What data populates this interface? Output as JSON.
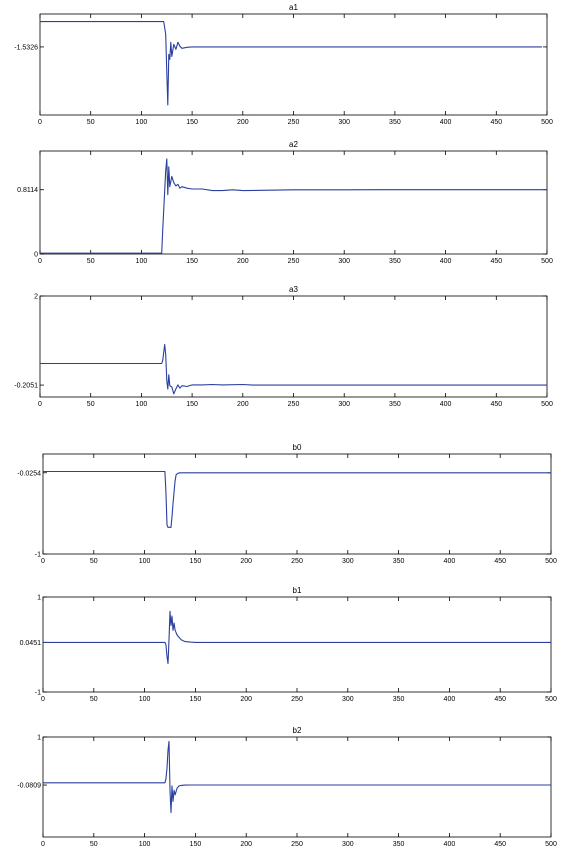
{
  "colors": {
    "line": "#2b3f9e",
    "axes": "#000000",
    "background": "#ffffff"
  },
  "chart_data": [
    {
      "type": "line",
      "title": "a1",
      "xlim": [
        0,
        500
      ],
      "ylim": [
        -1.6,
        -1.5
      ],
      "xticks": [
        0,
        50,
        100,
        150,
        200,
        250,
        300,
        350,
        400,
        450,
        500
      ],
      "xtick_labels": [
        "0",
        "50",
        "100",
        "150",
        "200",
        "250",
        "300",
        "350",
        "400",
        "450",
        "500"
      ],
      "yticks": [
        -1.5326
      ],
      "ytick_labels": [
        "-1.5326"
      ],
      "series": [
        {
          "x": [
            0,
            122,
            124,
            125,
            126,
            127,
            128,
            129,
            130,
            132,
            134,
            136,
            138,
            140,
            145,
            150,
            200,
            250,
            300,
            350,
            400,
            450,
            495
          ],
          "y": [
            -1.5075,
            -1.5075,
            -1.52,
            -1.558,
            -1.59,
            -1.54,
            -1.545,
            -1.528,
            -1.542,
            -1.53,
            -1.535,
            -1.528,
            -1.532,
            -1.534,
            -1.533,
            -1.5326,
            -1.5326,
            -1.5326,
            -1.5326,
            -1.5326,
            -1.5326,
            -1.5326,
            -1.5326
          ]
        }
      ]
    },
    {
      "type": "line",
      "title": "a2",
      "xlim": [
        0,
        500
      ],
      "ylim": [
        0,
        1.3
      ],
      "xticks": [
        0,
        50,
        100,
        150,
        200,
        250,
        300,
        350,
        400,
        450,
        500
      ],
      "xtick_labels": [
        "0",
        "50",
        "100",
        "150",
        "200",
        "250",
        "300",
        "350",
        "400",
        "450",
        "500"
      ],
      "yticks": [
        0,
        0.8114
      ],
      "ytick_labels": [
        "0",
        "0.8114"
      ],
      "series": [
        {
          "x": [
            0,
            120,
            121,
            123,
            124,
            125,
            126,
            127,
            128,
            130,
            132,
            134,
            136,
            138,
            140,
            145,
            150,
            160,
            170,
            180,
            190,
            200,
            250,
            300,
            350,
            400,
            450,
            500
          ],
          "y": [
            0.01,
            0.01,
            0.3,
            0.8,
            1.05,
            1.2,
            0.75,
            1.1,
            0.85,
            0.98,
            0.9,
            0.86,
            0.88,
            0.83,
            0.85,
            0.83,
            0.82,
            0.82,
            0.8,
            0.8,
            0.81,
            0.8,
            0.81,
            0.81,
            0.8114,
            0.8114,
            0.8114,
            0.8114
          ]
        }
      ]
    },
    {
      "type": "line",
      "title": "a3",
      "xlim": [
        0,
        500
      ],
      "ylim": [
        -0.5,
        2.0
      ],
      "xticks": [
        0,
        50,
        100,
        150,
        200,
        250,
        300,
        350,
        400,
        450,
        500
      ],
      "xtick_labels": [
        "0",
        "50",
        "100",
        "150",
        "200",
        "250",
        "300",
        "350",
        "400",
        "450",
        "500"
      ],
      "yticks": [
        -0.2051,
        2
      ],
      "ytick_labels": [
        "-0.2051",
        "2"
      ],
      "series": [
        {
          "x": [
            0,
            120,
            121,
            122,
            123,
            124,
            125,
            126,
            127,
            128,
            130,
            132,
            134,
            136,
            138,
            140,
            145,
            150,
            160,
            170,
            180,
            200,
            210,
            250,
            300,
            350,
            400,
            450,
            500
          ],
          "y": [
            0.33,
            0.33,
            0.4,
            0.6,
            0.8,
            0.55,
            -0.1,
            -0.3,
            0.05,
            -0.22,
            -0.25,
            -0.42,
            -0.3,
            -0.2,
            -0.28,
            -0.22,
            -0.24,
            -0.2,
            -0.2,
            -0.19,
            -0.2,
            -0.19,
            -0.2051,
            -0.2051,
            -0.2051,
            -0.2051,
            -0.2051,
            -0.2051,
            -0.2051
          ]
        }
      ]
    },
    {
      "type": "line",
      "title": "b0",
      "xlim": [
        0,
        500
      ],
      "ylim": [
        -1.0,
        0.2
      ],
      "xticks": [
        0,
        50,
        100,
        150,
        200,
        250,
        300,
        350,
        400,
        450,
        500
      ],
      "xtick_labels": [
        "0",
        "50",
        "100",
        "150",
        "200",
        "250",
        "300",
        "350",
        "400",
        "450",
        "500"
      ],
      "yticks": [
        -1,
        -0.0254
      ],
      "ytick_labels": [
        "-1",
        "-0.0254"
      ],
      "series": [
        {
          "x": [
            0,
            120,
            121,
            122,
            123,
            124,
            125,
            126,
            127,
            128,
            129,
            130,
            131,
            133,
            135,
            137,
            140,
            145,
            150,
            200,
            250,
            300,
            350,
            400,
            450,
            500
          ],
          "y": [
            -0.01,
            -0.01,
            -0.25,
            -0.65,
            -0.68,
            -0.68,
            -0.68,
            -0.68,
            -0.55,
            -0.4,
            -0.25,
            -0.12,
            -0.05,
            -0.03,
            -0.025,
            -0.026,
            -0.0254,
            -0.0254,
            -0.0254,
            -0.0254,
            -0.0254,
            -0.0254,
            -0.0254,
            -0.0254,
            -0.0254,
            -0.0254
          ]
        }
      ]
    },
    {
      "type": "line",
      "title": "b1",
      "xlim": [
        0,
        500
      ],
      "ylim": [
        -1.0,
        1.0
      ],
      "xticks": [
        0,
        50,
        100,
        150,
        200,
        250,
        300,
        350,
        400,
        450,
        500
      ],
      "xtick_labels": [
        "0",
        "50",
        "100",
        "150",
        "200",
        "250",
        "300",
        "350",
        "400",
        "450",
        "500"
      ],
      "yticks": [
        -1,
        0.0451,
        1
      ],
      "ytick_labels": [
        "-1",
        "0.0451",
        "1"
      ],
      "series": [
        {
          "x": [
            0,
            120,
            121,
            122,
            123,
            124,
            125,
            126,
            127,
            128,
            129,
            130,
            132,
            134,
            136,
            138,
            140,
            145,
            150,
            200,
            250,
            300,
            350,
            400,
            450,
            500
          ],
          "y": [
            0.0451,
            0.0451,
            0.0,
            -0.25,
            -0.4,
            0.1,
            0.7,
            0.4,
            0.6,
            0.3,
            0.45,
            0.3,
            0.2,
            0.15,
            0.1,
            0.08,
            0.06,
            0.05,
            0.0451,
            0.0451,
            0.0451,
            0.0451,
            0.0451,
            0.0451,
            0.0451,
            0.0451
          ]
        }
      ]
    },
    {
      "type": "line",
      "title": "b2",
      "xlim": [
        0,
        500
      ],
      "ylim": [
        -1.25,
        1.0
      ],
      "xticks": [
        0,
        50,
        100,
        150,
        200,
        250,
        300,
        350,
        400,
        450,
        500
      ],
      "xtick_labels": [
        "0",
        "50",
        "100",
        "150",
        "200",
        "250",
        "300",
        "350",
        "400",
        "450",
        "500"
      ],
      "yticks": [
        -0.0809,
        1
      ],
      "ytick_labels": [
        "-0.0809",
        "1"
      ],
      "series": [
        {
          "x": [
            0,
            120,
            121,
            122,
            123,
            124,
            125,
            126,
            127,
            128,
            129,
            130,
            132,
            134,
            136,
            138,
            140,
            145,
            150,
            200,
            250,
            300,
            350,
            400,
            450,
            500
          ],
          "y": [
            -0.03,
            -0.03,
            0.05,
            0.3,
            0.7,
            0.9,
            -0.2,
            -0.7,
            -0.1,
            -0.45,
            -0.2,
            -0.3,
            -0.15,
            -0.1,
            -0.09,
            -0.085,
            -0.082,
            -0.081,
            -0.0809,
            -0.0809,
            -0.0809,
            -0.0809,
            -0.0809,
            -0.0809,
            -0.0809,
            -0.0809
          ]
        }
      ]
    }
  ]
}
